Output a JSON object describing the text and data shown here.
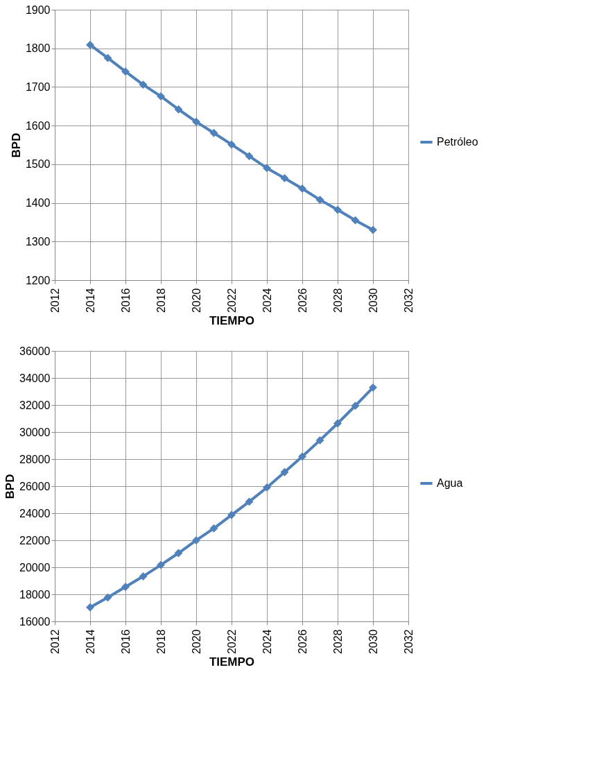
{
  "chart_data": [
    {
      "type": "line",
      "xlabel": "TIEMPO",
      "ylabel": "BPD",
      "x": [
        2014,
        2015,
        2016,
        2017,
        2018,
        2019,
        2020,
        2021,
        2022,
        2023,
        2024,
        2025,
        2026,
        2027,
        2028,
        2029,
        2030
      ],
      "series": [
        {
          "name": "Petróleo",
          "color": "#4f81bd",
          "values": [
            1809,
            1775,
            1740,
            1706,
            1676,
            1642,
            1610,
            1581,
            1551,
            1521,
            1490,
            1464,
            1437,
            1408,
            1382,
            1355,
            1330
          ]
        }
      ],
      "xlim": [
        2012,
        2032
      ],
      "xticks": [
        2012,
        2014,
        2016,
        2018,
        2020,
        2022,
        2024,
        2026,
        2028,
        2030,
        2032
      ],
      "ylim": [
        1200,
        1900
      ],
      "yticks": [
        1200,
        1300,
        1400,
        1500,
        1600,
        1700,
        1800,
        1900
      ],
      "grid": true,
      "legend": "right",
      "marker": "diamond",
      "line_style": "solid"
    },
    {
      "type": "line",
      "xlabel": "TIEMPO",
      "ylabel": "BPD",
      "x": [
        2014,
        2015,
        2016,
        2017,
        2018,
        2019,
        2020,
        2021,
        2022,
        2023,
        2024,
        2025,
        2026,
        2027,
        2028,
        2029,
        2030
      ],
      "series": [
        {
          "name": "Agua",
          "color": "#4f81bd",
          "values": [
            17040,
            17770,
            18550,
            19330,
            20170,
            21050,
            21990,
            22880,
            23870,
            24850,
            25900,
            27040,
            28190,
            29390,
            30640,
            31940,
            33290
          ]
        }
      ],
      "xlim": [
        2012,
        2032
      ],
      "xticks": [
        2012,
        2014,
        2016,
        2018,
        2020,
        2022,
        2024,
        2026,
        2028,
        2030,
        2032
      ],
      "ylim": [
        16000,
        36000
      ],
      "yticks": [
        16000,
        18000,
        20000,
        22000,
        24000,
        26000,
        28000,
        30000,
        32000,
        34000,
        36000
      ],
      "grid": true,
      "legend": "right",
      "marker": "diamond",
      "line_style": "solid"
    }
  ]
}
